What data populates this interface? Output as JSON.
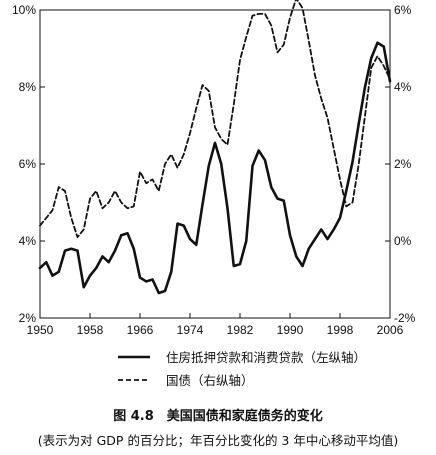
{
  "chart_data": {
    "type": "line",
    "title": "图 4.8　美国国债和家庭债务的变化",
    "subtitle": "(表示为对 GDP 的百分比；年百分比变化的 3 年中心移动平均值)",
    "x_ticks": [
      "1950",
      "1958",
      "1966",
      "1974",
      "1982",
      "1990",
      "1998",
      "2006"
    ],
    "xlim": [
      1950,
      2006
    ],
    "y_left": {
      "ticks": [
        "2%",
        "4%",
        "6%",
        "8%",
        "10%"
      ],
      "lim": [
        2,
        10
      ]
    },
    "y_right": {
      "ticks": [
        "-2%",
        "0%",
        "2%",
        "4%",
        "6%"
      ],
      "lim": [
        -2,
        6
      ]
    },
    "legend_position": "bottom",
    "series": [
      {
        "name": "住房抵押贷款和消费贷款（左纵轴）",
        "axis": "left",
        "style": "solid",
        "x": [
          1950,
          1951,
          1952,
          1953,
          1954,
          1955,
          1956,
          1957,
          1958,
          1959,
          1960,
          1961,
          1962,
          1963,
          1964,
          1965,
          1966,
          1967,
          1968,
          1969,
          1970,
          1971,
          1972,
          1973,
          1974,
          1975,
          1976,
          1977,
          1978,
          1979,
          1980,
          1981,
          1982,
          1983,
          1984,
          1985,
          1986,
          1987,
          1988,
          1989,
          1990,
          1991,
          1992,
          1993,
          1994,
          1995,
          1996,
          1997,
          1998,
          1999,
          2000,
          2001,
          2002,
          2003,
          2004,
          2005,
          2006
        ],
        "values": [
          3.3,
          3.45,
          3.1,
          3.2,
          3.75,
          3.8,
          3.75,
          2.8,
          3.1,
          3.3,
          3.6,
          3.45,
          3.75,
          4.15,
          4.2,
          3.8,
          3.05,
          2.95,
          3.0,
          2.65,
          2.7,
          3.2,
          4.45,
          4.4,
          4.05,
          3.9,
          4.95,
          5.95,
          6.55,
          6.0,
          4.85,
          3.35,
          3.4,
          4.0,
          5.95,
          6.35,
          6.1,
          5.4,
          5.1,
          5.05,
          4.15,
          3.6,
          3.35,
          3.8,
          4.05,
          4.3,
          4.05,
          4.3,
          4.6,
          5.3,
          6.05,
          7.05,
          8.0,
          8.75,
          9.15,
          9.05,
          8.15
        ]
      },
      {
        "name": "国债（右纵轴）",
        "axis": "right",
        "style": "dashed",
        "x": [
          1950,
          1951,
          1952,
          1953,
          1954,
          1955,
          1956,
          1957,
          1958,
          1959,
          1960,
          1961,
          1962,
          1963,
          1964,
          1965,
          1966,
          1967,
          1968,
          1969,
          1970,
          1971,
          1972,
          1973,
          1974,
          1975,
          1976,
          1977,
          1978,
          1979,
          1980,
          1981,
          1982,
          1983,
          1984,
          1985,
          1986,
          1987,
          1988,
          1989,
          1990,
          1991,
          1992,
          1993,
          1994,
          1995,
          1996,
          1997,
          1998,
          1999,
          2000,
          2001,
          2002,
          2003,
          2004,
          2005,
          2006
        ],
        "values": [
          0.4,
          0.6,
          0.8,
          1.4,
          1.3,
          0.6,
          0.1,
          0.3,
          1.1,
          1.3,
          0.85,
          1.0,
          1.3,
          1.0,
          0.85,
          0.9,
          1.8,
          1.5,
          1.6,
          1.3,
          2.0,
          2.25,
          1.9,
          2.25,
          2.8,
          3.45,
          4.05,
          3.9,
          2.95,
          2.65,
          2.5,
          3.55,
          4.7,
          5.3,
          5.85,
          5.9,
          5.9,
          5.6,
          4.9,
          5.1,
          5.8,
          6.3,
          6.05,
          5.2,
          4.3,
          3.7,
          3.2,
          2.4,
          1.6,
          0.9,
          1.0,
          2.0,
          3.25,
          4.5,
          4.8,
          4.55,
          4.2
        ]
      }
    ]
  }
}
